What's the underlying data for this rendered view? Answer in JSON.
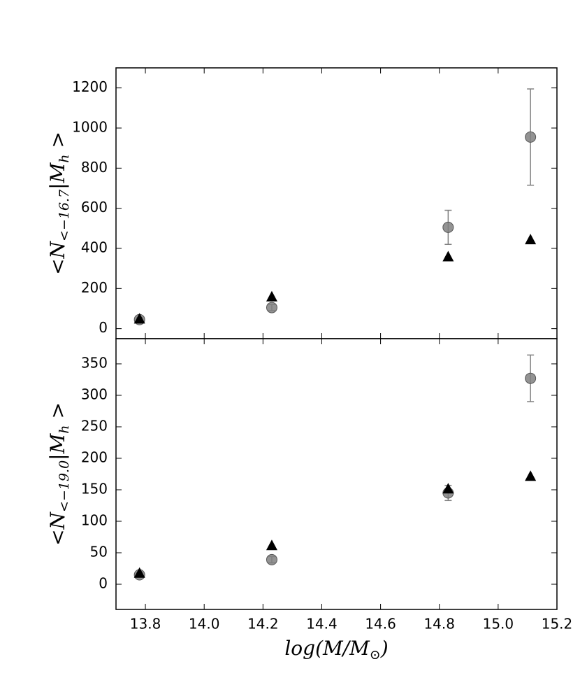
{
  "chart_data": [
    {
      "type": "scatter",
      "ylabel": {
        "base": "<N",
        "sub": "<−16.7",
        "tail": "|M",
        "tail_sub": "h",
        "close": " >"
      },
      "x": [
        13.78,
        14.23,
        14.83,
        15.11
      ],
      "xlim": [
        13.7,
        15.2
      ],
      "ylim": [
        -50,
        1300
      ],
      "yticks": [
        0,
        200,
        400,
        600,
        800,
        1000,
        1200
      ],
      "series": [
        {
          "marker": "o",
          "color": "#808080",
          "values": [
            45,
            105,
            505,
            955
          ],
          "errors": [
            10,
            15,
            85,
            240
          ]
        },
        {
          "marker": "^",
          "color": "#000000",
          "values": [
            50,
            160,
            360,
            445
          ]
        }
      ]
    },
    {
      "type": "scatter",
      "ylabel": {
        "base": "<N",
        "sub": "<−19.0",
        "tail": "|M",
        "tail_sub": "h",
        "close": " >"
      },
      "xlabel": {
        "base": "log(M/M",
        "sub": "⊙",
        "close": ")"
      },
      "x": [
        13.78,
        14.23,
        14.83,
        15.11
      ],
      "xlim": [
        13.7,
        15.2
      ],
      "ylim": [
        -40,
        390
      ],
      "xticks": [
        13.8,
        {
          "value": 14,
          "label": "14.0"
        },
        14.2,
        14.4,
        14.6,
        14.8,
        {
          "value": 15,
          "label": "15.0"
        },
        15.2
      ],
      "yticks": [
        0,
        50,
        100,
        150,
        200,
        250,
        300,
        350
      ],
      "series": [
        {
          "marker": "o",
          "color": "#808080",
          "values": [
            15,
            39,
            145,
            327
          ],
          "errors": [
            3,
            5,
            12,
            37
          ]
        },
        {
          "marker": "^",
          "color": "#000000",
          "values": [
            18,
            62,
            152,
            172
          ]
        }
      ]
    }
  ]
}
